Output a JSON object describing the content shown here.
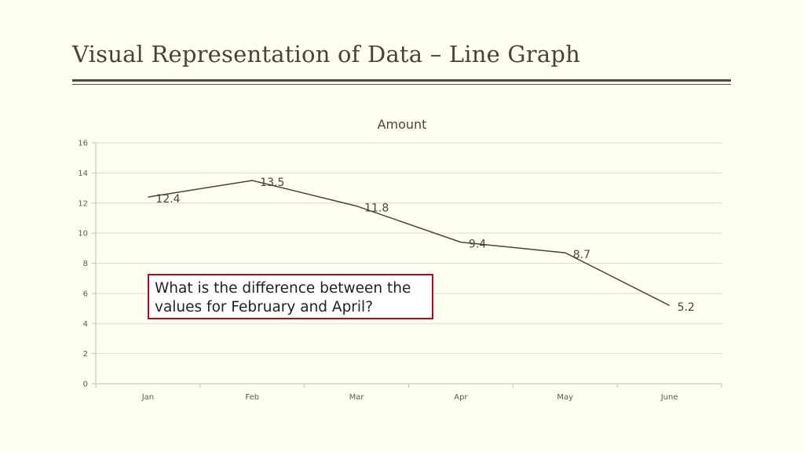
{
  "slide": {
    "title": "Visual Representation of Data – Line Graph"
  },
  "question": {
    "text": "What is the difference between   the values for February and April?"
  },
  "colors": {
    "background": "#fffff2",
    "line": "#4a4239",
    "grid": "#d9d9d9",
    "question_border": "#a3111d"
  },
  "chart_data": {
    "type": "line",
    "title": "Amount",
    "xlabel": "",
    "ylabel": "",
    "categories": [
      "Jan",
      "Feb",
      "Mar",
      "Apr",
      "May",
      "June"
    ],
    "series": [
      {
        "values": [
          12.4,
          13.5,
          11.8,
          9.4,
          8.7,
          5.2
        ]
      }
    ],
    "data_labels": [
      "12.4",
      "13.5",
      "11.8",
      "9.4",
      "8.7",
      "5.2"
    ],
    "ylim": [
      0,
      16
    ],
    "yticks": [
      0,
      2,
      4,
      6,
      8,
      10,
      12,
      14,
      16
    ],
    "grid": true,
    "legend": false
  }
}
